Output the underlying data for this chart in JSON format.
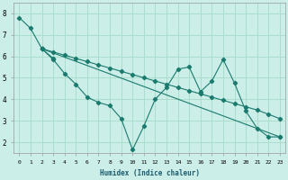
{
  "xlabel": "Humidex (Indice chaleur)",
  "bg_color": "#cceee8",
  "grid_color": "#aaddcc",
  "line_color": "#1a7a6e",
  "xlim": [
    -0.5,
    23.5
  ],
  "ylim": [
    1.5,
    8.5
  ],
  "xticks": [
    0,
    1,
    2,
    3,
    4,
    5,
    6,
    7,
    8,
    9,
    10,
    11,
    12,
    13,
    14,
    15,
    16,
    17,
    18,
    19,
    20,
    21,
    22,
    23
  ],
  "yticks": [
    2,
    3,
    4,
    5,
    6,
    7,
    8
  ],
  "series": [
    {
      "x": [
        0,
        1,
        2,
        3
      ],
      "y": [
        7.8,
        7.3,
        6.35,
        5.9
      ]
    },
    {
      "x": [
        2,
        3,
        4,
        5,
        6,
        7,
        8,
        9,
        10,
        11,
        12,
        13,
        14,
        15,
        16,
        17,
        18,
        19,
        20,
        21,
        22,
        23
      ],
      "y": [
        6.35,
        5.85,
        5.2,
        4.7,
        4.1,
        3.85,
        3.7,
        3.1,
        1.65,
        2.75,
        4.0,
        4.55,
        5.4,
        5.5,
        4.35,
        4.85,
        5.85,
        4.75,
        3.45,
        2.65,
        2.25,
        2.25
      ]
    },
    {
      "x": [
        2,
        3,
        4,
        5,
        6,
        7,
        8,
        9,
        10,
        11,
        12,
        13,
        14,
        15,
        16,
        17,
        18,
        19,
        20,
        21,
        22,
        23
      ],
      "y": [
        6.35,
        6.2,
        6.05,
        5.9,
        5.75,
        5.6,
        5.45,
        5.3,
        5.15,
        5.0,
        4.85,
        4.7,
        4.55,
        4.4,
        4.25,
        4.1,
        3.95,
        3.8,
        3.65,
        3.5,
        3.3,
        3.1
      ]
    },
    {
      "x": [
        2,
        23
      ],
      "y": [
        6.35,
        2.25
      ]
    }
  ]
}
